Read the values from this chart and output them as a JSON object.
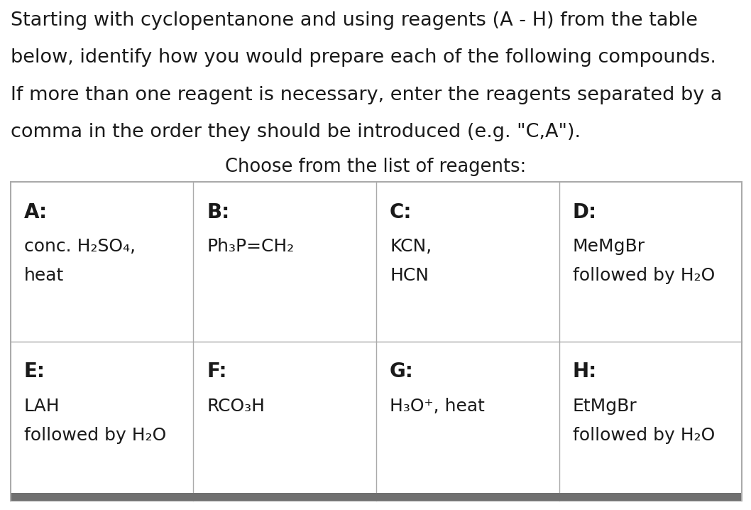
{
  "title_lines": [
    "Starting with cyclopentanone and using reagents (A - H) from the table",
    "below, identify how you would prepare each of the following compounds.",
    "If more than one reagent is necessary, enter the reagents separated by a",
    "comma in the order they should be introduced (e.g. \"C,A\")."
  ],
  "subtitle_text": "Choose from the list of reagents:",
  "background_color": "#ffffff",
  "table_border_color": "#aaaaaa",
  "text_color": "#1a1a1a",
  "cells": [
    {
      "label": "A:",
      "content_lines": [
        "conc. H₂SO₄,",
        "heat"
      ],
      "col": 0,
      "row": 0
    },
    {
      "label": "B:",
      "content_lines": [
        "Ph₃P=CH₂"
      ],
      "col": 1,
      "row": 0
    },
    {
      "label": "C:",
      "content_lines": [
        "KCN,",
        "HCN"
      ],
      "col": 2,
      "row": 0
    },
    {
      "label": "D:",
      "content_lines": [
        "MeMgBr",
        "followed by H₂O"
      ],
      "col": 3,
      "row": 0
    },
    {
      "label": "E:",
      "content_lines": [
        "LAH",
        "followed by H₂O"
      ],
      "col": 0,
      "row": 1
    },
    {
      "label": "F:",
      "content_lines": [
        "RCO₃H"
      ],
      "col": 1,
      "row": 1
    },
    {
      "label": "G:",
      "content_lines": [
        "H₃O⁺, heat"
      ],
      "col": 2,
      "row": 1
    },
    {
      "label": "H:",
      "content_lines": [
        "EtMgBr",
        "followed by H₂O"
      ],
      "col": 3,
      "row": 1
    }
  ],
  "title_fontsize": 19.5,
  "subtitle_fontsize": 18.5,
  "label_fontsize": 20,
  "content_fontsize": 18,
  "bottom_bar_color": "#707070",
  "font_family": "DejaVu Sans"
}
